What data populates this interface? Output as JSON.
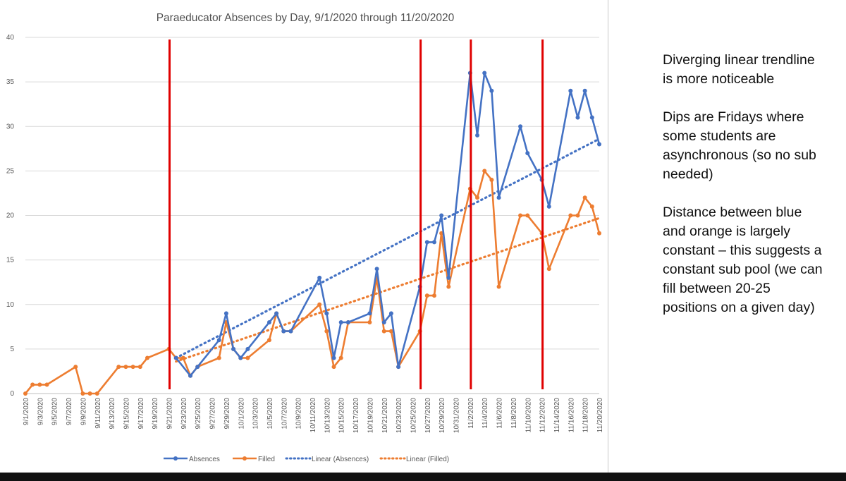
{
  "chart_data": {
    "type": "line",
    "title": "Paraeducator Absences by Day, 9/1/2020 through 11/20/2020",
    "xlabel": "",
    "ylabel": "",
    "ylim": [
      0,
      40
    ],
    "yticks": [
      0,
      5,
      10,
      15,
      20,
      25,
      30,
      35,
      40
    ],
    "x_range_days": "9/1/2020 to 11/20/2020",
    "x_tick_labels": [
      "9/1/2020",
      "9/3/2020",
      "9/5/2020",
      "9/7/2020",
      "9/9/2020",
      "9/11/2020",
      "9/13/2020",
      "9/15/2020",
      "9/17/2020",
      "9/19/2020",
      "9/21/2020",
      "9/23/2020",
      "9/25/2020",
      "9/27/2020",
      "9/29/2020",
      "10/1/2020",
      "10/3/2020",
      "10/5/2020",
      "10/7/2020",
      "10/9/2020",
      "10/11/2020",
      "10/13/2020",
      "10/15/2020",
      "10/17/2020",
      "10/19/2020",
      "10/21/2020",
      "10/23/2020",
      "10/25/2020",
      "10/27/2020",
      "10/29/2020",
      "10/31/2020",
      "11/2/2020",
      "11/4/2020",
      "11/6/2020",
      "11/8/2020",
      "11/10/2020",
      "11/12/2020",
      "11/14/2020",
      "11/16/2020",
      "11/18/2020",
      "11/20/2020"
    ],
    "grid": "horizontal",
    "legend_position": "bottom",
    "series": [
      {
        "name": "Absences",
        "color": "#4472c4",
        "style": "solid-markers",
        "points": [
          [
            "9/22/2020",
            4
          ],
          [
            "9/24/2020",
            2
          ],
          [
            "9/25/2020",
            3
          ],
          [
            "9/28/2020",
            6
          ],
          [
            "9/29/2020",
            9
          ],
          [
            "9/30/2020",
            5
          ],
          [
            "10/1/2020",
            4
          ],
          [
            "10/2/2020",
            5
          ],
          [
            "10/5/2020",
            8
          ],
          [
            "10/6/2020",
            9
          ],
          [
            "10/7/2020",
            7
          ],
          [
            "10/8/2020",
            7
          ],
          [
            "10/12/2020",
            13
          ],
          [
            "10/13/2020",
            9
          ],
          [
            "10/14/2020",
            4
          ],
          [
            "10/15/2020",
            8
          ],
          [
            "10/16/2020",
            8
          ],
          [
            "10/19/2020",
            9
          ],
          [
            "10/20/2020",
            14
          ],
          [
            "10/21/2020",
            8
          ],
          [
            "10/22/2020",
            9
          ],
          [
            "10/23/2020",
            3
          ],
          [
            "10/26/2020",
            12
          ],
          [
            "10/27/2020",
            17
          ],
          [
            "10/28/2020",
            17
          ],
          [
            "10/29/2020",
            20
          ],
          [
            "10/30/2020",
            13
          ],
          [
            "11/2/2020",
            36
          ],
          [
            "11/3/2020",
            29
          ],
          [
            "11/4/2020",
            36
          ],
          [
            "11/5/2020",
            34
          ],
          [
            "11/6/2020",
            22
          ],
          [
            "11/9/2020",
            30
          ],
          [
            "11/10/2020",
            27
          ],
          [
            "11/12/2020",
            24
          ],
          [
            "11/13/2020",
            21
          ],
          [
            "11/16/2020",
            34
          ],
          [
            "11/17/2020",
            31
          ],
          [
            "11/18/2020",
            34
          ],
          [
            "11/19/2020",
            31
          ],
          [
            "11/20/2020",
            28
          ]
        ]
      },
      {
        "name": "Filled",
        "color": "#ed7d31",
        "style": "solid-markers",
        "points": [
          [
            "9/1/2020",
            0
          ],
          [
            "9/2/2020",
            1
          ],
          [
            "9/3/2020",
            1
          ],
          [
            "9/4/2020",
            1
          ],
          [
            "9/8/2020",
            3
          ],
          [
            "9/9/2020",
            0
          ],
          [
            "9/10/2020",
            0
          ],
          [
            "9/11/2020",
            0
          ],
          [
            "9/14/2020",
            3
          ],
          [
            "9/15/2020",
            3
          ],
          [
            "9/16/2020",
            3
          ],
          [
            "9/17/2020",
            3
          ],
          [
            "9/18/2020",
            4
          ],
          [
            "9/21/2020",
            5
          ],
          [
            "9/22/2020",
            4
          ],
          [
            "9/23/2020",
            4
          ],
          [
            "9/24/2020",
            2
          ],
          [
            "9/25/2020",
            3
          ],
          [
            "9/28/2020",
            4
          ],
          [
            "9/29/2020",
            8
          ],
          [
            "9/30/2020",
            5
          ],
          [
            "10/1/2020",
            4
          ],
          [
            "10/2/2020",
            4
          ],
          [
            "10/5/2020",
            6
          ],
          [
            "10/6/2020",
            9
          ],
          [
            "10/7/2020",
            7
          ],
          [
            "10/8/2020",
            7
          ],
          [
            "10/12/2020",
            10
          ],
          [
            "10/13/2020",
            7
          ],
          [
            "10/14/2020",
            3
          ],
          [
            "10/15/2020",
            4
          ],
          [
            "10/16/2020",
            8
          ],
          [
            "10/19/2020",
            8
          ],
          [
            "10/20/2020",
            13
          ],
          [
            "10/21/2020",
            7
          ],
          [
            "10/22/2020",
            7
          ],
          [
            "10/23/2020",
            3
          ],
          [
            "10/26/2020",
            7
          ],
          [
            "10/27/2020",
            11
          ],
          [
            "10/28/2020",
            11
          ],
          [
            "10/29/2020",
            18
          ],
          [
            "10/30/2020",
            12
          ],
          [
            "11/2/2020",
            23
          ],
          [
            "11/3/2020",
            22
          ],
          [
            "11/4/2020",
            25
          ],
          [
            "11/5/2020",
            24
          ],
          [
            "11/6/2020",
            12
          ],
          [
            "11/9/2020",
            20
          ],
          [
            "11/10/2020",
            20
          ],
          [
            "11/12/2020",
            18
          ],
          [
            "11/13/2020",
            14
          ],
          [
            "11/16/2020",
            20
          ],
          [
            "11/17/2020",
            20
          ],
          [
            "11/18/2020",
            22
          ],
          [
            "11/19/2020",
            21
          ],
          [
            "11/20/2020",
            18
          ]
        ]
      },
      {
        "name": "Linear (Absences)",
        "color": "#4472c4",
        "style": "dotted-trendline",
        "points": [
          [
            "9/22/2020",
            4
          ],
          [
            "11/20/2020",
            28.6
          ]
        ]
      },
      {
        "name": "Linear (Filled)",
        "color": "#ed7d31",
        "style": "dotted-trendline",
        "points": [
          [
            "9/22/2020",
            3.6
          ],
          [
            "11/20/2020",
            19.7
          ]
        ]
      }
    ],
    "vertical_markers": {
      "color": "#e00000",
      "dates": [
        "9/21/2020",
        "10/26/2020",
        "11/2/2020",
        "11/12/2020"
      ]
    }
  },
  "notes": [
    "Diverging linear trendline is more noticeable",
    "Dips are Fridays where some students are asynchronous (so no sub needed)",
    "Distance between blue and orange is largely constant – this suggests a constant sub pool (we can fill between 20-25 positions on a given day)"
  ]
}
